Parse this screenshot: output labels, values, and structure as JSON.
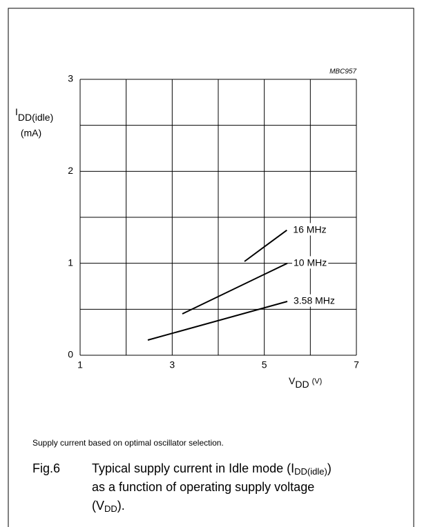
{
  "chart_data": {
    "type": "line",
    "code": "MBC957",
    "y_label": {
      "main": "I",
      "sub": "DD(idle)",
      "unit": "(mA)"
    },
    "x_label": {
      "main": "V",
      "sub": "DD",
      "unit": "(V)"
    },
    "xlim": [
      1,
      7
    ],
    "xticks": [
      1,
      3,
      5,
      7
    ],
    "xgrid": [
      1,
      2,
      3,
      4,
      5,
      6,
      7
    ],
    "ylim": [
      0,
      3
    ],
    "yticks": [
      0,
      1,
      2,
      3
    ],
    "ygrid": [
      0,
      0.5,
      1,
      1.5,
      2,
      2.5,
      3
    ],
    "series": [
      {
        "name": "16 MHz",
        "color": "#000000",
        "x": [
          4.57,
          5.49
        ],
        "values": [
          1.02,
          1.36
        ]
      },
      {
        "name": "10 MHz",
        "color": "#000000",
        "x": [
          3.22,
          5.5
        ],
        "values": [
          0.45,
          1.0
        ]
      },
      {
        "name": "3.58 MHz",
        "color": "#000000",
        "x": [
          2.47,
          5.5
        ],
        "values": [
          0.165,
          0.585
        ]
      }
    ]
  },
  "note": "Supply current based on optimal oscillator selection.",
  "caption": {
    "number": "Fig.6",
    "line1": {
      "text": "Typical supply current in Idle mode (I",
      "sub": "DD(idle)",
      "end": ")"
    },
    "line2": "as a function of operating supply voltage",
    "line3": {
      "text": "(V",
      "sub": "DD",
      "end": ")."
    }
  }
}
